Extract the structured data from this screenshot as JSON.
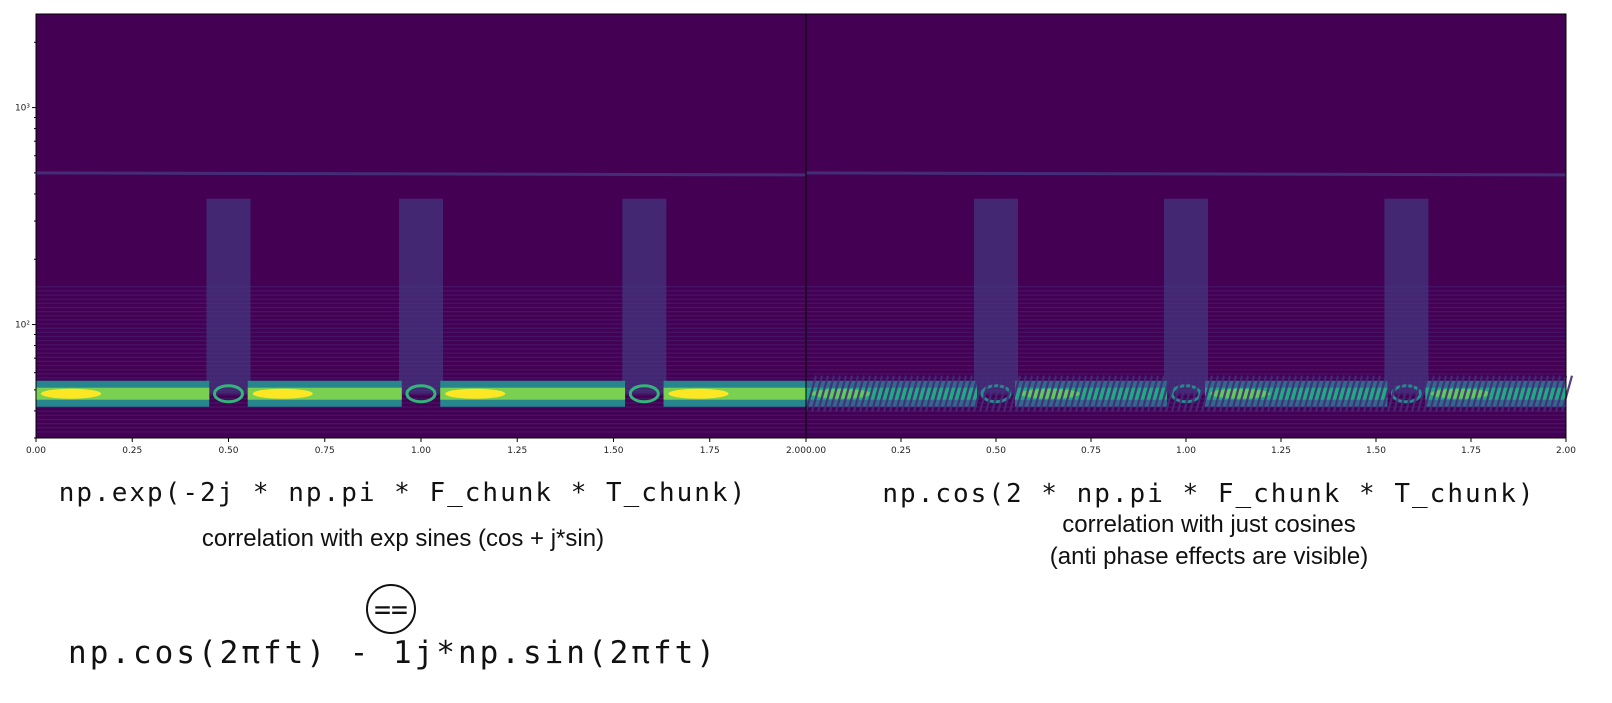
{
  "chart_data": [
    {
      "type": "heatmap",
      "subtype": "spectrogram",
      "colormap": "viridis",
      "title": "",
      "xlabel": "",
      "ylabel": "",
      "xlim": [
        0.0,
        2.0
      ],
      "ylim": [
        30,
        2700
      ],
      "yscale": "log",
      "x_ticks": [
        0.0,
        0.25,
        0.5,
        0.75,
        1.0,
        1.25,
        1.5,
        1.75,
        2.0
      ],
      "x_tick_labels": [
        "0.00",
        "0.25",
        "0.50",
        "0.75",
        "1.00",
        "1.25",
        "1.50",
        "1.75",
        "2.00"
      ],
      "y_ticks": [
        100,
        1000
      ],
      "y_tick_labels": [
        "10²",
        "10³"
      ],
      "dominant_band_hz": 48,
      "faint_band_hz": 500,
      "transition_times": [
        0.5,
        1.0,
        1.58
      ],
      "interference_striations": false,
      "max_intensity": 1.0
    },
    {
      "type": "heatmap",
      "subtype": "spectrogram",
      "colormap": "viridis",
      "title": "",
      "xlabel": "",
      "ylabel": "",
      "xlim": [
        0.0,
        2.0
      ],
      "ylim": [
        30,
        2700
      ],
      "yscale": "log",
      "x_ticks": [
        0.0,
        0.25,
        0.5,
        0.75,
        1.0,
        1.25,
        1.5,
        1.75,
        2.0
      ],
      "x_tick_labels": [
        "0.00",
        "0.25",
        "0.50",
        "0.75",
        "1.00",
        "1.25",
        "1.50",
        "1.75",
        "2.00"
      ],
      "y_ticks": [
        100,
        1000
      ],
      "y_tick_labels": [
        "10²",
        "10³"
      ],
      "dominant_band_hz": 48,
      "faint_band_hz": 500,
      "transition_times": [
        0.5,
        1.0,
        1.58
      ],
      "interference_striations": true,
      "max_intensity": 0.75
    }
  ],
  "captions": {
    "left": {
      "code": "np.exp(-2j * np.pi * F_chunk * T_chunk)",
      "description": "correlation with exp sines (cos + j*sin)",
      "equals_symbol": "==",
      "equivalent_code": "np.cos(2πft) - 1j*np.sin(2πft)"
    },
    "right": {
      "code": "np.cos(2 * np.pi * F_chunk * T_chunk)",
      "description_line1": "correlation with just cosines",
      "description_line2": "(anti phase effects are visible)"
    }
  }
}
